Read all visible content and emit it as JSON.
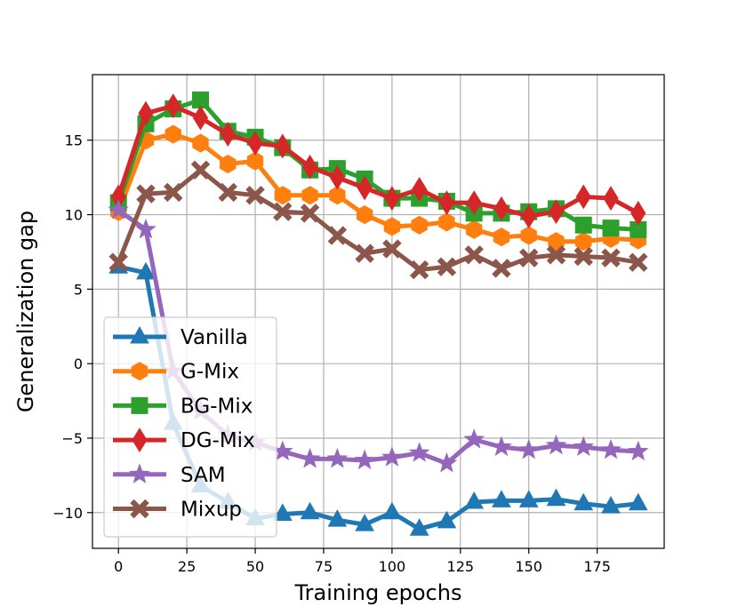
{
  "chart_data": {
    "type": "line",
    "title": "",
    "xlabel": "Training epochs",
    "ylabel": "Generalization gap",
    "xlim": [
      -9.5,
      199.5
    ],
    "ylim": [
      -12.4,
      19.4
    ],
    "xticks": [
      0,
      25,
      50,
      75,
      100,
      125,
      150,
      175
    ],
    "xtick_labels": [
      "0",
      "25",
      "50",
      "75",
      "100",
      "125",
      "150",
      "175"
    ],
    "yticks": [
      -10,
      -5,
      0,
      5,
      10,
      15
    ],
    "ytick_labels": [
      "−10",
      "−5",
      "0",
      "5",
      "10",
      "15"
    ],
    "grid": true,
    "legend_position": "lower-left",
    "x": [
      0,
      10,
      20,
      30,
      40,
      50,
      60,
      70,
      80,
      90,
      100,
      110,
      120,
      130,
      140,
      150,
      160,
      170,
      180,
      190
    ],
    "series": [
      {
        "name": "Vanilla",
        "color": "#1f77b4",
        "marker": "triangle",
        "values": [
          6.5,
          6.1,
          -4.0,
          -8.2,
          -9.3,
          -10.4,
          -10.1,
          -10.0,
          -10.5,
          -10.8,
          -10.0,
          -11.1,
          -10.6,
          -9.3,
          -9.2,
          -9.2,
          -9.1,
          -9.4,
          -9.6,
          -9.4
        ]
      },
      {
        "name": "G-Mix",
        "color": "#ff7f0e",
        "marker": "hexagon",
        "values": [
          10.2,
          15.0,
          15.4,
          14.8,
          13.4,
          13.6,
          11.3,
          11.3,
          11.3,
          10.0,
          9.2,
          9.3,
          9.5,
          9.0,
          8.5,
          8.6,
          8.2,
          8.2,
          8.4,
          8.3
        ]
      },
      {
        "name": "BG-Mix",
        "color": "#2ca02c",
        "marker": "square",
        "values": [
          10.8,
          16.1,
          17.1,
          17.7,
          15.6,
          15.2,
          14.5,
          13.0,
          13.1,
          12.4,
          11.1,
          11.1,
          10.9,
          10.1,
          10.1,
          10.2,
          10.4,
          9.3,
          9.1,
          9.0
        ]
      },
      {
        "name": "DG-Mix",
        "color": "#d62728",
        "marker": "thin-diamond",
        "values": [
          11.2,
          16.8,
          17.3,
          16.5,
          15.4,
          14.8,
          14.6,
          13.2,
          12.5,
          11.8,
          11.1,
          11.7,
          10.8,
          10.8,
          10.4,
          9.9,
          10.2,
          11.2,
          11.1,
          10.1
        ]
      },
      {
        "name": "SAM",
        "color": "#9467bd",
        "marker": "star",
        "values": [
          10.3,
          9.0,
          -0.5,
          -3.2,
          -4.8,
          -5.3,
          -5.9,
          -6.4,
          -6.4,
          -6.5,
          -6.3,
          -6.0,
          -6.7,
          -5.1,
          -5.6,
          -5.8,
          -5.5,
          -5.6,
          -5.8,
          -5.9
        ]
      },
      {
        "name": "Mixup",
        "color": "#8c564b",
        "marker": "x-filled",
        "values": [
          6.8,
          11.4,
          11.5,
          13.0,
          11.5,
          11.3,
          10.2,
          10.1,
          8.6,
          7.4,
          7.7,
          6.3,
          6.5,
          7.3,
          6.4,
          7.1,
          7.3,
          7.2,
          7.1,
          6.8
        ]
      }
    ]
  }
}
